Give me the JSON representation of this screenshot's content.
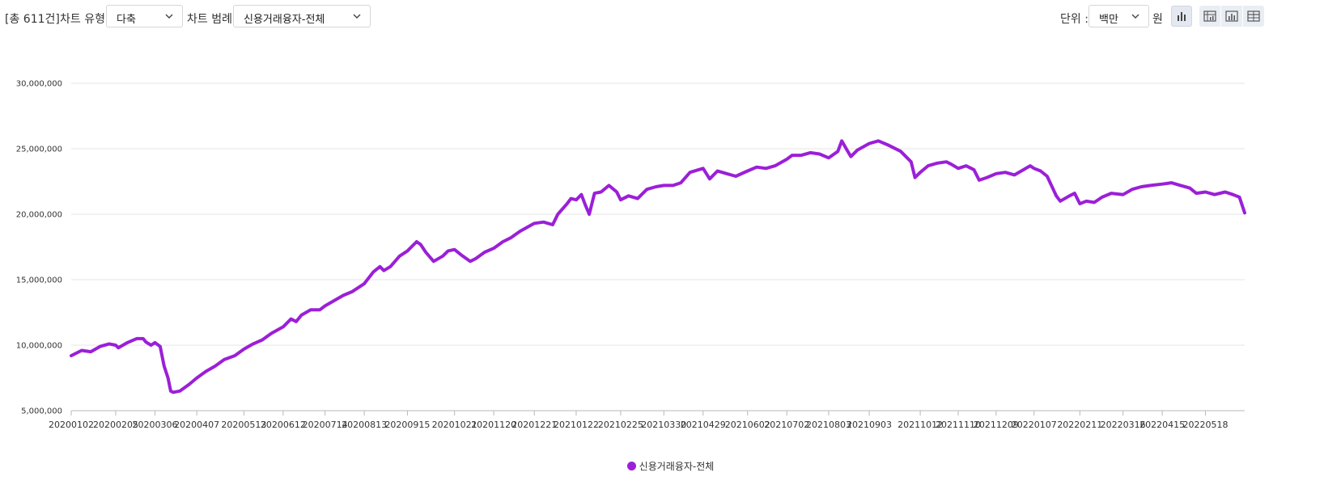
{
  "toolbar": {
    "total_label": "[총 611건]",
    "chart_type_label": "차트 유형",
    "chart_type_value": "다축",
    "legend_label": "차트 범례",
    "legend_value": "신용거래융자-전체",
    "unit_label": "단위 :",
    "unit_value": "백만",
    "currency_label": "원"
  },
  "colors": {
    "series": "#9b1fd8",
    "grid": "#e4e4e4",
    "axis": "#b8b8b8"
  },
  "chart_data": {
    "type": "line",
    "title": "",
    "xlabel": "",
    "ylabel": "",
    "ylim": [
      5000000,
      30000000
    ],
    "y_ticks": [
      "5,000,000",
      "10,000,000",
      "15,000,000",
      "20,000,000",
      "25,000,000",
      "30,000,000"
    ],
    "x_tick_labels": [
      "20200102",
      "20200205",
      "20200306",
      "20200407",
      "20200513",
      "20200612",
      "20200714",
      "20200813",
      "20200915",
      "20201021",
      "20201120",
      "20201221",
      "20210122",
      "20210225",
      "20210330",
      "20210429",
      "20210602",
      "20210702",
      "20210803",
      "20210903",
      "20211012",
      "20211110",
      "20211209",
      "20220107",
      "20220211",
      "20220316",
      "20220415",
      "20220518"
    ],
    "grid": true,
    "legend_position": "bottom",
    "series": [
      {
        "name": "신용거래융자-전체",
        "points": [
          [
            "20200102",
            9200000
          ],
          [
            "20200110",
            9600000
          ],
          [
            "20200117",
            9500000
          ],
          [
            "20200124",
            9900000
          ],
          [
            "20200131",
            10100000
          ],
          [
            "20200205",
            10000000
          ],
          [
            "20200207",
            9800000
          ],
          [
            "20200214",
            10200000
          ],
          [
            "20200221",
            10500000
          ],
          [
            "20200226",
            10500000
          ],
          [
            "20200228",
            10250000
          ],
          [
            "20200303",
            10000000
          ],
          [
            "20200306",
            10200000
          ],
          [
            "20200310",
            9900000
          ],
          [
            "20200313",
            8400000
          ],
          [
            "20200316",
            7500000
          ],
          [
            "20200318",
            6500000
          ],
          [
            "20200320",
            6400000
          ],
          [
            "20200325",
            6500000
          ],
          [
            "20200401",
            7000000
          ],
          [
            "20200407",
            7500000
          ],
          [
            "20200414",
            8000000
          ],
          [
            "20200421",
            8400000
          ],
          [
            "20200428",
            8900000
          ],
          [
            "20200506",
            9200000
          ],
          [
            "20200513",
            9700000
          ],
          [
            "20200520",
            10100000
          ],
          [
            "20200527",
            10400000
          ],
          [
            "20200603",
            10900000
          ],
          [
            "20200612",
            11400000
          ],
          [
            "20200618",
            12000000
          ],
          [
            "20200622",
            11800000
          ],
          [
            "20200626",
            12300000
          ],
          [
            "20200703",
            12700000
          ],
          [
            "20200710",
            12700000
          ],
          [
            "20200714",
            13000000
          ],
          [
            "20200721",
            13400000
          ],
          [
            "20200728",
            13800000
          ],
          [
            "20200804",
            14100000
          ],
          [
            "20200813",
            14700000
          ],
          [
            "20200820",
            15600000
          ],
          [
            "20200825",
            16000000
          ],
          [
            "20200828",
            15700000
          ],
          [
            "20200902",
            16000000
          ],
          [
            "20200909",
            16800000
          ],
          [
            "20200915",
            17200000
          ],
          [
            "20200922",
            17900000
          ],
          [
            "20200925",
            17700000
          ],
          [
            "20200929",
            17100000
          ],
          [
            "20201005",
            16400000
          ],
          [
            "20201012",
            16800000
          ],
          [
            "20201016",
            17200000
          ],
          [
            "20201021",
            17300000
          ],
          [
            "20201026",
            16900000
          ],
          [
            "20201102",
            16400000
          ],
          [
            "20201106",
            16600000
          ],
          [
            "20201113",
            17100000
          ],
          [
            "20201120",
            17400000
          ],
          [
            "20201127",
            17900000
          ],
          [
            "20201203",
            18200000
          ],
          [
            "20201210",
            18700000
          ],
          [
            "20201221",
            19300000
          ],
          [
            "20201228",
            19400000
          ],
          [
            "20210104",
            19200000
          ],
          [
            "20210108",
            20000000
          ],
          [
            "20210115",
            20800000
          ],
          [
            "20210118",
            21200000
          ],
          [
            "20210122",
            21100000
          ],
          [
            "20210126",
            21500000
          ],
          [
            "20210129",
            20700000
          ],
          [
            "20210201",
            20000000
          ],
          [
            "20210205",
            21600000
          ],
          [
            "20210210",
            21700000
          ],
          [
            "20210216",
            22200000
          ],
          [
            "20210222",
            21700000
          ],
          [
            "20210225",
            21100000
          ],
          [
            "20210303",
            21400000
          ],
          [
            "20210310",
            21200000
          ],
          [
            "20210317",
            21900000
          ],
          [
            "20210324",
            22100000
          ],
          [
            "20210330",
            22200000
          ],
          [
            "20210406",
            22200000
          ],
          [
            "20210412",
            22400000
          ],
          [
            "20210419",
            23200000
          ],
          [
            "20210429",
            23500000
          ],
          [
            "20210504",
            22700000
          ],
          [
            "20210510",
            23300000
          ],
          [
            "20210517",
            23100000
          ],
          [
            "20210524",
            22900000
          ],
          [
            "20210602",
            23300000
          ],
          [
            "20210609",
            23600000
          ],
          [
            "20210616",
            23500000
          ],
          [
            "20210623",
            23700000
          ],
          [
            "20210702",
            24200000
          ],
          [
            "20210706",
            24500000
          ],
          [
            "20210713",
            24500000
          ],
          [
            "20210720",
            24700000
          ],
          [
            "20210727",
            24600000
          ],
          [
            "20210803",
            24300000
          ],
          [
            "20210810",
            24800000
          ],
          [
            "20210813",
            25600000
          ],
          [
            "20210817",
            24900000
          ],
          [
            "20210820",
            24400000
          ],
          [
            "20210825",
            24900000
          ],
          [
            "20210903",
            25400000
          ],
          [
            "20210910",
            25600000
          ],
          [
            "20210917",
            25300000
          ],
          [
            "20210927",
            24800000
          ],
          [
            "20211005",
            24000000
          ],
          [
            "20211008",
            22800000
          ],
          [
            "20211012",
            23200000
          ],
          [
            "20211018",
            23700000
          ],
          [
            "20211025",
            23900000
          ],
          [
            "20211101",
            24000000
          ],
          [
            "20211105",
            23800000
          ],
          [
            "20211110",
            23500000
          ],
          [
            "20211116",
            23700000
          ],
          [
            "20211122",
            23400000
          ],
          [
            "20211126",
            22600000
          ],
          [
            "20211202",
            22800000
          ],
          [
            "20211209",
            23100000
          ],
          [
            "20211216",
            23200000
          ],
          [
            "20211223",
            23000000
          ],
          [
            "20211230",
            23400000
          ],
          [
            "20220104",
            23700000
          ],
          [
            "20220107",
            23500000
          ],
          [
            "20220112",
            23300000
          ],
          [
            "20220117",
            22900000
          ],
          [
            "20220124",
            21400000
          ],
          [
            "20220127",
            21000000
          ],
          [
            "20220203",
            21400000
          ],
          [
            "20220207",
            21600000
          ],
          [
            "20220211",
            20800000
          ],
          [
            "20220216",
            21000000
          ],
          [
            "20220222",
            20900000
          ],
          [
            "20220228",
            21300000
          ],
          [
            "20220307",
            21600000
          ],
          [
            "20220316",
            21500000
          ],
          [
            "20220323",
            21900000
          ],
          [
            "20220330",
            22100000
          ],
          [
            "20220406",
            22200000
          ],
          [
            "20220415",
            22300000
          ],
          [
            "20220422",
            22400000
          ],
          [
            "20220429",
            22200000
          ],
          [
            "20220506",
            22000000
          ],
          [
            "20220511",
            21600000
          ],
          [
            "20220518",
            21700000
          ],
          [
            "20220525",
            21500000
          ],
          [
            "20220602",
            21700000
          ],
          [
            "20220608",
            21500000
          ],
          [
            "20220613",
            21300000
          ],
          [
            "20220617",
            20100000
          ]
        ]
      }
    ]
  }
}
